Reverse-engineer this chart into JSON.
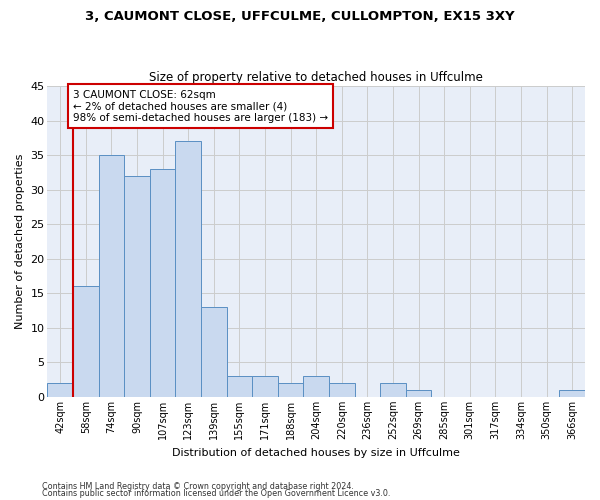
{
  "title": "3, CAUMONT CLOSE, UFFCULME, CULLOMPTON, EX15 3XY",
  "subtitle": "Size of property relative to detached houses in Uffculme",
  "xlabel": "Distribution of detached houses by size in Uffculme",
  "ylabel": "Number of detached properties",
  "categories": [
    "42sqm",
    "58sqm",
    "74sqm",
    "90sqm",
    "107sqm",
    "123sqm",
    "139sqm",
    "155sqm",
    "171sqm",
    "188sqm",
    "204sqm",
    "220sqm",
    "236sqm",
    "252sqm",
    "269sqm",
    "285sqm",
    "301sqm",
    "317sqm",
    "334sqm",
    "350sqm",
    "366sqm"
  ],
  "values": [
    2,
    16,
    35,
    32,
    33,
    37,
    13,
    3,
    3,
    2,
    3,
    2,
    0,
    2,
    1,
    0,
    0,
    0,
    0,
    0,
    1
  ],
  "bar_color": "#c9d9ef",
  "bar_edge_color": "#5a8fc3",
  "grid_color": "#cccccc",
  "background_color": "#e8eef8",
  "ylim": [
    0,
    45
  ],
  "yticks": [
    0,
    5,
    10,
    15,
    20,
    25,
    30,
    35,
    40,
    45
  ],
  "property_line_x": 0.5,
  "annotation_text": "3 CAUMONT CLOSE: 62sqm\n← 2% of detached houses are smaller (4)\n98% of semi-detached houses are larger (183) →",
  "annotation_box_color": "#ffffff",
  "annotation_border_color": "#cc0000",
  "footer_line1": "Contains HM Land Registry data © Crown copyright and database right 2024.",
  "footer_line2": "Contains public sector information licensed under the Open Government Licence v3.0."
}
